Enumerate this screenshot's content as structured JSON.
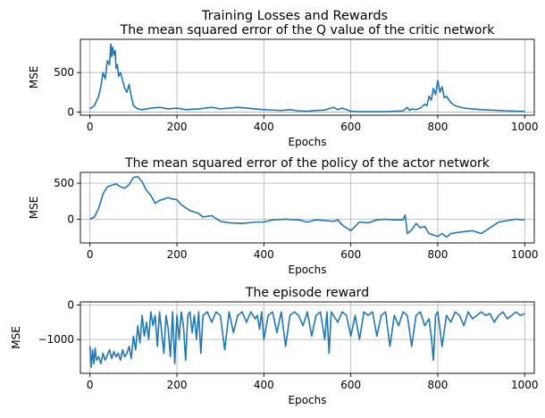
{
  "figure": {
    "suptitle": "Training Losses and Rewards"
  },
  "chart_data": [
    {
      "type": "line",
      "title": "The mean squared error of the Q value of the critic network",
      "xlabel": "Epochs",
      "ylabel": "MSE",
      "xlim": [
        -22,
        1022
      ],
      "ylim": [
        -40,
        920
      ],
      "xticks": [
        0,
        200,
        400,
        600,
        800,
        1000
      ],
      "xtick_labels": [
        "0",
        "200",
        "400",
        "600",
        "800",
        "1000"
      ],
      "yticks": [
        0,
        500
      ],
      "ytick_labels": [
        "0",
        "500"
      ],
      "grid": true,
      "line_color": "#1f77b4",
      "series": [
        {
          "x": [
            0,
            10,
            20,
            25,
            30,
            35,
            40,
            45,
            48,
            50,
            52,
            55,
            58,
            60,
            63,
            66,
            70,
            75,
            80,
            85,
            90,
            95,
            100,
            110,
            120,
            140,
            160,
            180,
            200,
            220,
            250,
            280,
            300,
            320,
            340,
            360,
            380,
            400,
            420,
            440,
            460,
            480,
            500,
            520,
            540,
            560,
            570,
            580,
            600,
            620,
            650,
            680,
            700,
            720,
            730,
            735,
            740,
            750,
            760,
            770,
            775,
            780,
            785,
            790,
            795,
            800,
            805,
            810,
            815,
            820,
            830,
            840,
            860,
            880,
            900,
            920,
            940,
            960,
            980,
            1000
          ],
          "y": [
            40,
            80,
            200,
            320,
            500,
            420,
            650,
            600,
            860,
            700,
            820,
            720,
            780,
            550,
            600,
            450,
            500,
            400,
            300,
            250,
            350,
            200,
            80,
            40,
            30,
            50,
            60,
            40,
            50,
            30,
            40,
            60,
            40,
            50,
            60,
            50,
            40,
            30,
            25,
            20,
            30,
            15,
            10,
            20,
            25,
            60,
            30,
            50,
            10,
            5,
            5,
            5,
            10,
            15,
            60,
            20,
            40,
            30,
            50,
            100,
            80,
            200,
            150,
            300,
            220,
            400,
            250,
            320,
            180,
            200,
            120,
            80,
            50,
            40,
            30,
            25,
            20,
            15,
            10,
            10
          ]
        }
      ]
    },
    {
      "type": "line",
      "title": "The mean squared error of the policy of the actor network",
      "xlabel": "Epochs",
      "ylabel": "MSE",
      "xlim": [
        -22,
        1022
      ],
      "ylim": [
        -330,
        650
      ],
      "xticks": [
        0,
        200,
        400,
        600,
        800,
        1000
      ],
      "xtick_labels": [
        "0",
        "200",
        "400",
        "600",
        "800",
        "1000"
      ],
      "yticks": [
        0,
        500
      ],
      "ytick_labels": [
        "0",
        "500"
      ],
      "grid": true,
      "line_color": "#1f77b4",
      "series": [
        {
          "x": [
            0,
            10,
            20,
            30,
            40,
            50,
            60,
            70,
            80,
            90,
            100,
            110,
            120,
            130,
            140,
            150,
            160,
            170,
            180,
            190,
            200,
            210,
            220,
            230,
            240,
            250,
            260,
            280,
            300,
            320,
            350,
            380,
            400,
            420,
            450,
            480,
            500,
            520,
            540,
            560,
            570,
            580,
            600,
            620,
            640,
            660,
            680,
            700,
            720,
            725,
            730,
            740,
            750,
            760,
            770,
            780,
            790,
            800,
            810,
            820,
            830,
            850,
            880,
            900,
            920,
            940,
            960,
            980,
            1000
          ],
          "y": [
            0,
            30,
            150,
            350,
            450,
            470,
            490,
            450,
            430,
            480,
            580,
            590,
            520,
            400,
            330,
            220,
            260,
            280,
            300,
            280,
            270,
            200,
            160,
            120,
            100,
            80,
            30,
            50,
            -30,
            -50,
            -60,
            -40,
            -40,
            -10,
            0,
            -10,
            -40,
            -10,
            -20,
            -30,
            -10,
            -80,
            -160,
            -40,
            -50,
            -10,
            0,
            -10,
            -10,
            60,
            -200,
            -150,
            -60,
            -120,
            -100,
            -200,
            -220,
            -240,
            -200,
            -250,
            -200,
            -180,
            -160,
            -200,
            -120,
            -40,
            -20,
            0,
            -10
          ]
        }
      ]
    },
    {
      "type": "line",
      "title": "The episode reward",
      "xlabel": "Epochs",
      "ylabel": "MSE",
      "xlim": [
        -22,
        1022
      ],
      "ylim": [
        -1980,
        90
      ],
      "xticks": [
        0,
        200,
        400,
        600,
        800,
        1000
      ],
      "xtick_labels": [
        "0",
        "200",
        "400",
        "600",
        "800",
        "1000"
      ],
      "yticks": [
        -1000,
        0
      ],
      "ytick_labels": [
        "−1000",
        "0"
      ],
      "grid": true,
      "line_color": "#1f77b4",
      "series": [
        {
          "x": [
            0,
            3,
            6,
            9,
            12,
            15,
            20,
            25,
            30,
            35,
            40,
            45,
            50,
            55,
            60,
            65,
            70,
            75,
            80,
            85,
            90,
            95,
            100,
            105,
            110,
            115,
            120,
            125,
            130,
            135,
            140,
            145,
            150,
            155,
            160,
            165,
            170,
            175,
            180,
            185,
            190,
            195,
            200,
            205,
            210,
            215,
            220,
            225,
            230,
            235,
            240,
            245,
            250,
            255,
            260,
            270,
            280,
            290,
            300,
            310,
            320,
            330,
            340,
            350,
            360,
            370,
            380,
            385,
            390,
            395,
            400,
            410,
            420,
            430,
            440,
            450,
            460,
            470,
            480,
            490,
            500,
            510,
            520,
            530,
            540,
            545,
            550,
            555,
            560,
            570,
            580,
            590,
            600,
            610,
            620,
            630,
            640,
            650,
            660,
            670,
            680,
            690,
            700,
            710,
            720,
            730,
            740,
            750,
            760,
            770,
            780,
            785,
            790,
            795,
            800,
            810,
            820,
            830,
            840,
            850,
            860,
            870,
            880,
            890,
            900,
            910,
            920,
            930,
            940,
            950,
            960,
            970,
            980,
            990,
            1000
          ],
          "y": [
            -1200,
            -1800,
            -1300,
            -1700,
            -1250,
            -1600,
            -1500,
            -1700,
            -1400,
            -1600,
            -1450,
            -1300,
            -1550,
            -1350,
            -1500,
            -1400,
            -1600,
            -1300,
            -1500,
            -1400,
            -1200,
            -1550,
            -900,
            -1300,
            -600,
            -1100,
            -300,
            -900,
            -500,
            -1000,
            -200,
            -600,
            -300,
            -1200,
            -200,
            -800,
            -1400,
            -300,
            -700,
            -1500,
            -200,
            -1700,
            -300,
            -1000,
            -200,
            -600,
            -1600,
            -300,
            -200,
            -800,
            -300,
            -1000,
            -200,
            -1400,
            -300,
            -200,
            -500,
            -200,
            -300,
            -1300,
            -200,
            -800,
            -300,
            -200,
            -500,
            -200,
            -400,
            -300,
            -700,
            -200,
            -1000,
            -300,
            -200,
            -800,
            -200,
            -1200,
            -300,
            -200,
            -300,
            -600,
            -200,
            -900,
            -300,
            -200,
            -1000,
            -200,
            -1400,
            -200,
            -300,
            -500,
            -200,
            -300,
            -900,
            -300,
            -1000,
            -200,
            -300,
            -200,
            -900,
            -300,
            -200,
            -1200,
            -300,
            -600,
            -200,
            -300,
            -1200,
            -300,
            -200,
            -600,
            -400,
            -900,
            -1600,
            -300,
            -200,
            -1200,
            -300,
            -500,
            -200,
            -300,
            -600,
            -200,
            -400,
            -300,
            -200,
            -300,
            -250,
            -500,
            -300,
            -200,
            -400,
            -300,
            -200,
            -300,
            -250
          ]
        }
      ]
    }
  ]
}
